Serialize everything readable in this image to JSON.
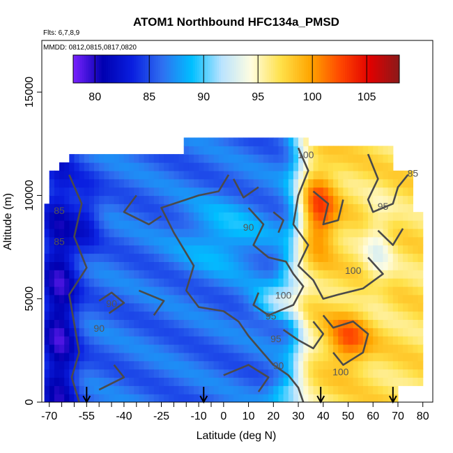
{
  "chart_data": {
    "type": "heatmap",
    "title": "ATOM1 Northbound HFC134a_PMSD",
    "notes": [
      "Flts: 6,7,8,9",
      "MMDD: 0812,0815,0817,0820"
    ],
    "xlabel": "Latitude (deg N)",
    "ylabel": "Altitude (m)",
    "xlim": [
      -73,
      84
    ],
    "ylim": [
      0,
      17500
    ],
    "x_ticks": [
      -70,
      -55,
      -40,
      -25,
      -10,
      0,
      10,
      20,
      30,
      40,
      50,
      60,
      70,
      80
    ],
    "x_tick_labels": [
      "-70",
      "-55",
      "-40",
      "-25",
      "-10",
      "0",
      "10",
      "20",
      "30",
      "40",
      "50",
      "60",
      "70",
      "80"
    ],
    "x_minor_ticks": [
      -65,
      -60,
      -50,
      -45,
      -35,
      -30,
      -20,
      -15,
      -5
    ],
    "y_ticks": [
      0,
      5000,
      10000,
      15000
    ],
    "y_tick_labels": [
      "0",
      "5000",
      "10000",
      "15000"
    ],
    "colorbar": {
      "range": [
        78,
        108
      ],
      "ticks": [
        80,
        85,
        90,
        95,
        100,
        105
      ],
      "tick_labels": [
        "80",
        "85",
        "90",
        "95",
        "100",
        "105"
      ],
      "colors": [
        "#7a22ff",
        "#0000b0",
        "#0a1fe0",
        "#2f6ff0",
        "#00bfff",
        "#b9e3ff",
        "#fffde0",
        "#ffe14a",
        "#ffa500",
        "#ff4800",
        "#e10000",
        "#8a1a1a"
      ]
    },
    "flight_arrows_lat": [
      -55,
      -8,
      39,
      68
    ],
    "contours": [
      {
        "level": 90,
        "label": "90",
        "x": 10,
        "y": 8300
      },
      {
        "level": 90,
        "label": "90",
        "x": -45,
        "y": 4600
      },
      {
        "level": 90,
        "label": "90",
        "x": -50,
        "y": 3400
      },
      {
        "level": 90,
        "label": "90",
        "x": 22,
        "y": 1600
      },
      {
        "level": 95,
        "label": "95",
        "x": 19,
        "y": 4000
      },
      {
        "level": 95,
        "label": "95",
        "x": 21,
        "y": 2900
      },
      {
        "level": 95,
        "label": "95",
        "x": 64,
        "y": 9300
      },
      {
        "level": 100,
        "label": "100",
        "x": 24,
        "y": 5000
      },
      {
        "level": 100,
        "label": "100",
        "x": 52,
        "y": 6200
      },
      {
        "level": 100,
        "label": "100",
        "x": 47,
        "y": 1300
      },
      {
        "level": 100,
        "label": "100",
        "x": 33,
        "y": 11800
      },
      {
        "level": 85,
        "label": "85",
        "x": -66,
        "y": 9100
      },
      {
        "level": 85,
        "label": "85",
        "x": -66,
        "y": 7600
      },
      {
        "level": 85,
        "label": "85",
        "x": 76,
        "y": 10900
      }
    ]
  }
}
